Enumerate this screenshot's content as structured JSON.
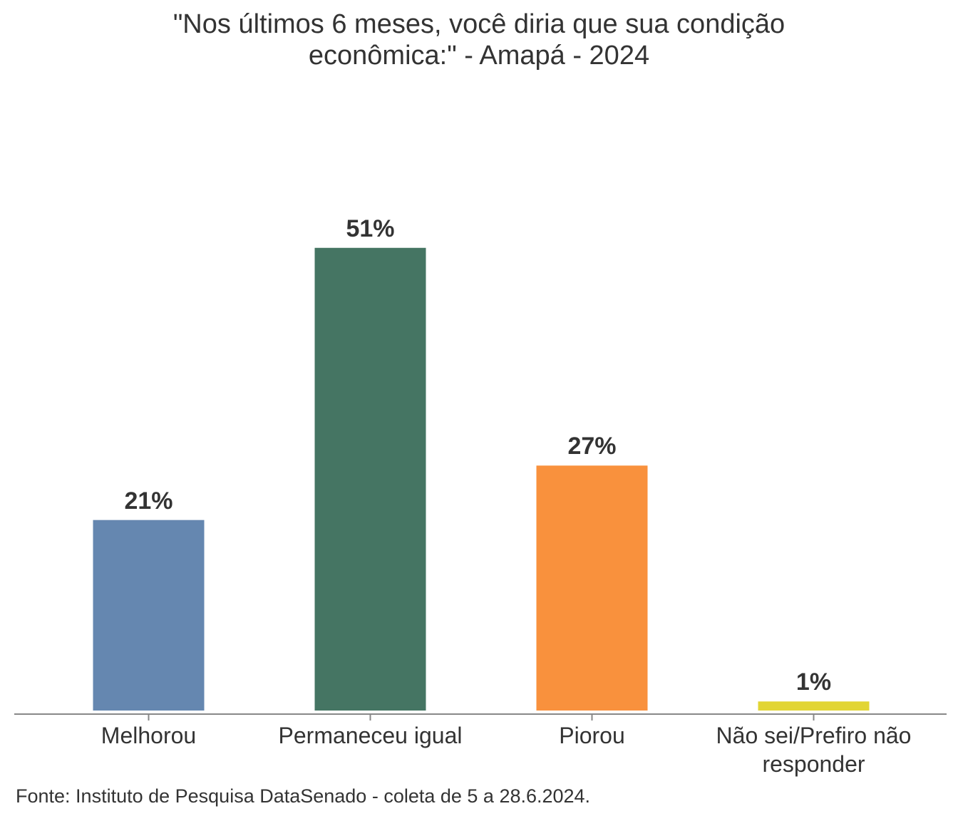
{
  "chart_data": {
    "type": "bar",
    "title": "\"Nos últimos 6 meses, você diria que sua condição econômica:\" - Amapá - 2024",
    "categories": [
      "Melhorou",
      "Permaneceu igual",
      "Piorou",
      "Não sei/Prefiro não responder"
    ],
    "values": [
      21,
      51,
      27,
      1
    ],
    "value_labels": [
      "21%",
      "51%",
      "27%",
      "1%"
    ],
    "colors": [
      "#6587b0",
      "#457563",
      "#f9913d",
      "#e2d534"
    ],
    "source": "Fonte: Instituto de Pesquisa DataSenado - coleta de 5 a 28.6.2024."
  }
}
